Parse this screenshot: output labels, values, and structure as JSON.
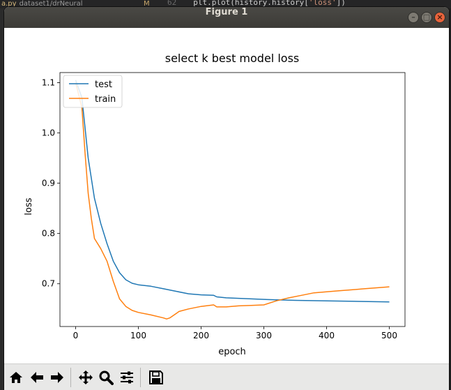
{
  "background": {
    "file_tab": "a.py",
    "file_path": "dataset1/drNeural",
    "modified_flag": "M",
    "line_number": "62",
    "code_prefix": "plt.plot(history.history[",
    "code_string": "'loss'",
    "code_suffix": "])"
  },
  "window": {
    "title": "Figure 1",
    "minimize_glyph": "–",
    "maximize_glyph": "□",
    "close_glyph": "×"
  },
  "toolbar": {
    "buttons": [
      "home-icon",
      "back-icon",
      "forward-icon",
      "pan-icon",
      "zoom-icon",
      "configure-subplots-icon",
      "save-icon"
    ]
  },
  "colors": {
    "test": "#1f77b4",
    "train": "#ff7f0e"
  },
  "chart_data": {
    "type": "line",
    "title": "select k best model loss",
    "xlabel": "epoch",
    "ylabel": "loss",
    "xlim": [
      -25,
      525
    ],
    "ylim": [
      0.615,
      1.12
    ],
    "xticks": [
      0,
      100,
      200,
      300,
      400,
      500
    ],
    "yticks": [
      0.7,
      0.8,
      0.9,
      1.0,
      1.1
    ],
    "legend_position": "upper left",
    "series": [
      {
        "name": "test",
        "color": "#1f77b4",
        "x": [
          0,
          10,
          20,
          30,
          40,
          50,
          60,
          70,
          80,
          90,
          100,
          120,
          140,
          160,
          180,
          200,
          220,
          225,
          240,
          260,
          280,
          300,
          320,
          350,
          400,
          450,
          500
        ],
        "y": [
          1.105,
          1.07,
          0.95,
          0.87,
          0.82,
          0.78,
          0.745,
          0.722,
          0.708,
          0.701,
          0.698,
          0.695,
          0.69,
          0.685,
          0.68,
          0.678,
          0.677,
          0.674,
          0.672,
          0.671,
          0.67,
          0.669,
          0.668,
          0.667,
          0.666,
          0.665,
          0.664
        ]
      },
      {
        "name": "train",
        "color": "#ff7f0e",
        "x": [
          0,
          10,
          15,
          20,
          25,
          30,
          40,
          50,
          60,
          70,
          80,
          90,
          100,
          120,
          140,
          145,
          150,
          165,
          180,
          200,
          220,
          225,
          240,
          260,
          280,
          300,
          320,
          340,
          360,
          380,
          400,
          420,
          440,
          460,
          480,
          500
        ],
        "y": [
          1.1,
          1.05,
          0.96,
          0.88,
          0.83,
          0.79,
          0.77,
          0.745,
          0.705,
          0.67,
          0.655,
          0.647,
          0.643,
          0.638,
          0.632,
          0.63,
          0.632,
          0.645,
          0.65,
          0.655,
          0.658,
          0.654,
          0.654,
          0.656,
          0.657,
          0.658,
          0.666,
          0.672,
          0.677,
          0.682,
          0.684,
          0.686,
          0.688,
          0.69,
          0.692,
          0.694
        ]
      }
    ]
  }
}
